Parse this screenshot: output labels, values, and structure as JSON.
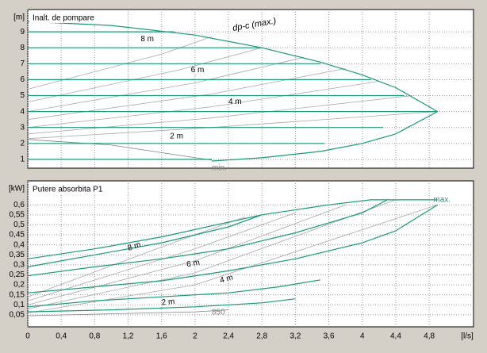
{
  "chart_data": [
    {
      "type": "line",
      "title": "Inalt. de pompare",
      "ylabel": "[m]",
      "xlim": [
        0,
        5.33
      ],
      "ylim": [
        0.45,
        10.4
      ],
      "xticks": [
        0,
        0.4,
        0.8,
        1.2,
        1.6,
        2,
        2.4,
        2.8,
        3.2,
        3.6,
        4,
        4.4,
        4.8
      ],
      "yticks": [
        1,
        2,
        3,
        4,
        5,
        6,
        7,
        8,
        9
      ],
      "grid": true,
      "annotations": [
        "dp-c (max.)",
        "min.",
        "8 m",
        "6 m",
        "4 m",
        "2 m"
      ],
      "series": [
        {
          "color": "#a8a8a8",
          "x": [
            0,
            2.2,
            4.9
          ],
          "y": [
            2.3,
            3.0,
            4.0
          ]
        },
        {
          "color": "#a8a8a8",
          "x": [
            0,
            2.2,
            4.6
          ],
          "y": [
            2.6,
            3.6,
            5.0
          ]
        },
        {
          "color": "#a8a8a8",
          "x": [
            0,
            2.2,
            4.2
          ],
          "y": [
            3.0,
            4.3,
            5.9
          ]
        },
        {
          "color": "#a8a8a8",
          "x": [
            0,
            2.2,
            3.8
          ],
          "y": [
            3.5,
            5.1,
            6.7
          ]
        },
        {
          "color": "#a8a8a8",
          "x": [
            0,
            2.0,
            3.3
          ],
          "y": [
            4.0,
            5.8,
            7.4
          ]
        },
        {
          "color": "#a8a8a8",
          "x": [
            0,
            1.8,
            2.8
          ],
          "y": [
            4.6,
            6.6,
            8.0
          ]
        },
        {
          "color": "#a8a8a8",
          "x": [
            0,
            1.6,
            2.2
          ],
          "y": [
            5.4,
            7.6,
            8.7
          ]
        },
        {
          "color": "#808080",
          "x": [
            0,
            1.0,
            2.2
          ],
          "y": [
            2.25,
            1.9,
            0.95
          ]
        },
        {
          "color": "#1a9a7a",
          "x": [
            0,
            4.9
          ],
          "y": [
            4,
            4
          ]
        },
        {
          "color": "#1a9a7a",
          "x": [
            0,
            1.0,
            2.0,
            2.8,
            3.5,
            4.0,
            4.4,
            4.9
          ],
          "y": [
            9.65,
            9.4,
            8.8,
            8.0,
            7.1,
            6.3,
            5.5,
            4.0
          ]
        },
        {
          "color": "#1a9a7a",
          "x": [
            2.2,
            2.8,
            3.5,
            4.0,
            4.4,
            4.9
          ],
          "y": [
            0.9,
            1.1,
            1.5,
            2.0,
            2.6,
            4.0
          ]
        },
        {
          "color": "#1a9a7a",
          "x": [
            0,
            2.2
          ],
          "y": [
            1,
            1
          ]
        },
        {
          "color": "#1a9a7a",
          "x": [
            0,
            3.55
          ],
          "y": [
            2,
            2
          ]
        },
        {
          "color": "#1a9a7a",
          "x": [
            0,
            4.25
          ],
          "y": [
            3,
            3
          ]
        },
        {
          "color": "#1a9a7a",
          "x": [
            0,
            4.5
          ],
          "y": [
            5,
            5
          ]
        },
        {
          "color": "#1a9a7a",
          "x": [
            0,
            4.1
          ],
          "y": [
            6,
            6
          ]
        },
        {
          "color": "#1a9a7a",
          "x": [
            0,
            3.5
          ],
          "y": [
            7,
            7
          ]
        },
        {
          "color": "#1a9a7a",
          "x": [
            0,
            2.8
          ],
          "y": [
            8,
            8
          ]
        },
        {
          "color": "#1a9a7a",
          "x": [
            0,
            1.75
          ],
          "y": [
            9,
            9
          ]
        }
      ]
    },
    {
      "type": "line",
      "title": "Putere absorbita P1",
      "ylabel": "[kW]",
      "xlabel": "[l/s]",
      "xlim": [
        0,
        5.33
      ],
      "ylim": [
        -0.01,
        0.72
      ],
      "xticks": [
        0,
        {
          "value": 0.4,
          "label": "0,4"
        },
        {
          "value": 0.8,
          "label": "0,8"
        },
        {
          "value": 1.2,
          "label": "1,2"
        },
        {
          "value": 1.6,
          "label": "1,6"
        },
        2,
        {
          "value": 2.4,
          "label": "2,4"
        },
        {
          "value": 2.8,
          "label": "2,8"
        },
        {
          "value": 3.2,
          "label": "3,2"
        },
        {
          "value": 3.6,
          "label": "3,6"
        },
        4,
        {
          "value": 4.4,
          "label": "4,4"
        },
        {
          "value": 4.8,
          "label": "4,8"
        }
      ],
      "yticks": [
        {
          "value": 0.05,
          "label": "0,05"
        },
        {
          "value": 0.1,
          "label": "0,1"
        },
        {
          "value": 0.15,
          "label": "0,15"
        },
        {
          "value": 0.2,
          "label": "0,2"
        },
        {
          "value": 0.25,
          "label": "0,25"
        },
        {
          "value": 0.3,
          "label": "0,3"
        },
        {
          "value": 0.35,
          "label": "0,35"
        },
        {
          "value": 0.4,
          "label": "0,4"
        },
        {
          "value": 0.45,
          "label": "0,45"
        },
        {
          "value": 0.5,
          "label": "0,5"
        },
        {
          "value": 0.55,
          "label": "0,55"
        },
        {
          "value": 0.6,
          "label": "0,6"
        }
      ],
      "grid": true,
      "annotations": [
        "max.",
        "850",
        "8 m",
        "6 m",
        "4 m",
        "2 m"
      ],
      "series": [
        {
          "color": "#a8a8a8",
          "x": [
            0,
            2.0,
            4.9
          ],
          "y": [
            0.06,
            0.2,
            0.6
          ]
        },
        {
          "color": "#a8a8a8",
          "x": [
            0,
            2.0,
            4.4
          ],
          "y": [
            0.08,
            0.26,
            0.625
          ]
        },
        {
          "color": "#a8a8a8",
          "x": [
            0,
            2.0,
            3.8
          ],
          "y": [
            0.1,
            0.32,
            0.6
          ]
        },
        {
          "color": "#a8a8a8",
          "x": [
            0,
            2.0,
            3.2
          ],
          "y": [
            0.12,
            0.38,
            0.56
          ]
        },
        {
          "color": "#a8a8a8",
          "x": [
            0,
            1.8,
            2.6
          ],
          "y": [
            0.14,
            0.42,
            0.54
          ]
        },
        {
          "color": "#808080",
          "x": [
            0,
            1.0,
            2.0,
            2.4
          ],
          "y": [
            0.045,
            0.055,
            0.065,
            0.075
          ]
        },
        {
          "color": "#1a9a7a",
          "x": [
            0,
            0.8,
            1.6,
            2.8,
            3.6,
            4.1,
            4.9
          ],
          "y": [
            0.33,
            0.38,
            0.44,
            0.55,
            0.6,
            0.625,
            0.625
          ]
        },
        {
          "color": "#1a9a7a",
          "x": [
            0,
            0.8,
            1.6,
            2.4,
            2.8
          ],
          "y": [
            0.29,
            0.35,
            0.41,
            0.49,
            0.55
          ]
        },
        {
          "color": "#1a9a7a",
          "x": [
            0,
            0.8,
            1.6,
            2.4,
            3.2,
            3.6,
            4.0,
            4.3
          ],
          "y": [
            0.245,
            0.29,
            0.33,
            0.38,
            0.46,
            0.51,
            0.56,
            0.625
          ]
        },
        {
          "color": "#1a9a7a",
          "x": [
            0,
            0.8,
            1.6,
            2.4,
            3.2,
            4.0,
            4.4,
            4.9
          ],
          "y": [
            0.16,
            0.19,
            0.22,
            0.27,
            0.33,
            0.41,
            0.47,
            0.6
          ]
        },
        {
          "color": "#1a9a7a",
          "x": [
            0,
            0.8,
            1.6,
            2.4,
            3.0,
            3.5
          ],
          "y": [
            0.09,
            0.12,
            0.14,
            0.16,
            0.19,
            0.225
          ]
        },
        {
          "color": "#1a9a7a",
          "x": [
            0,
            1.0,
            2.0,
            2.8,
            3.2
          ],
          "y": [
            0.065,
            0.075,
            0.09,
            0.11,
            0.13
          ]
        }
      ]
    }
  ]
}
